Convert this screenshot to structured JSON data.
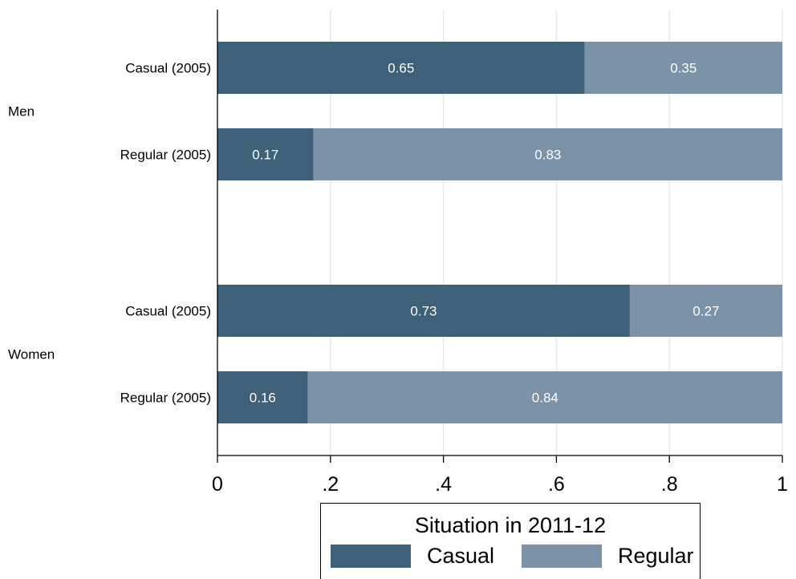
{
  "chart_data": {
    "type": "bar",
    "orientation": "horizontal",
    "stacked": true,
    "groups": [
      {
        "label": "Men",
        "bars": [
          {
            "label": "Casual (2005)",
            "values": [
              0.65,
              0.35
            ]
          },
          {
            "label": "Regular (2005)",
            "values": [
              0.17,
              0.83
            ]
          }
        ]
      },
      {
        "label": "Women",
        "bars": [
          {
            "label": "Casual (2005)",
            "values": [
              0.73,
              0.27
            ]
          },
          {
            "label": "Regular (2005)",
            "values": [
              0.16,
              0.84
            ]
          }
        ]
      }
    ],
    "series": [
      {
        "name": "Casual",
        "color": "#3e6079"
      },
      {
        "name": "Regular",
        "color": "#7b92a8"
      }
    ],
    "xlim": [
      0,
      1
    ],
    "xticks": [
      "0",
      ".2",
      ".4",
      ".6",
      ".8",
      "1"
    ],
    "grid": true,
    "legend": {
      "title": "Situation in 2011-12",
      "placement": "bottom"
    }
  }
}
